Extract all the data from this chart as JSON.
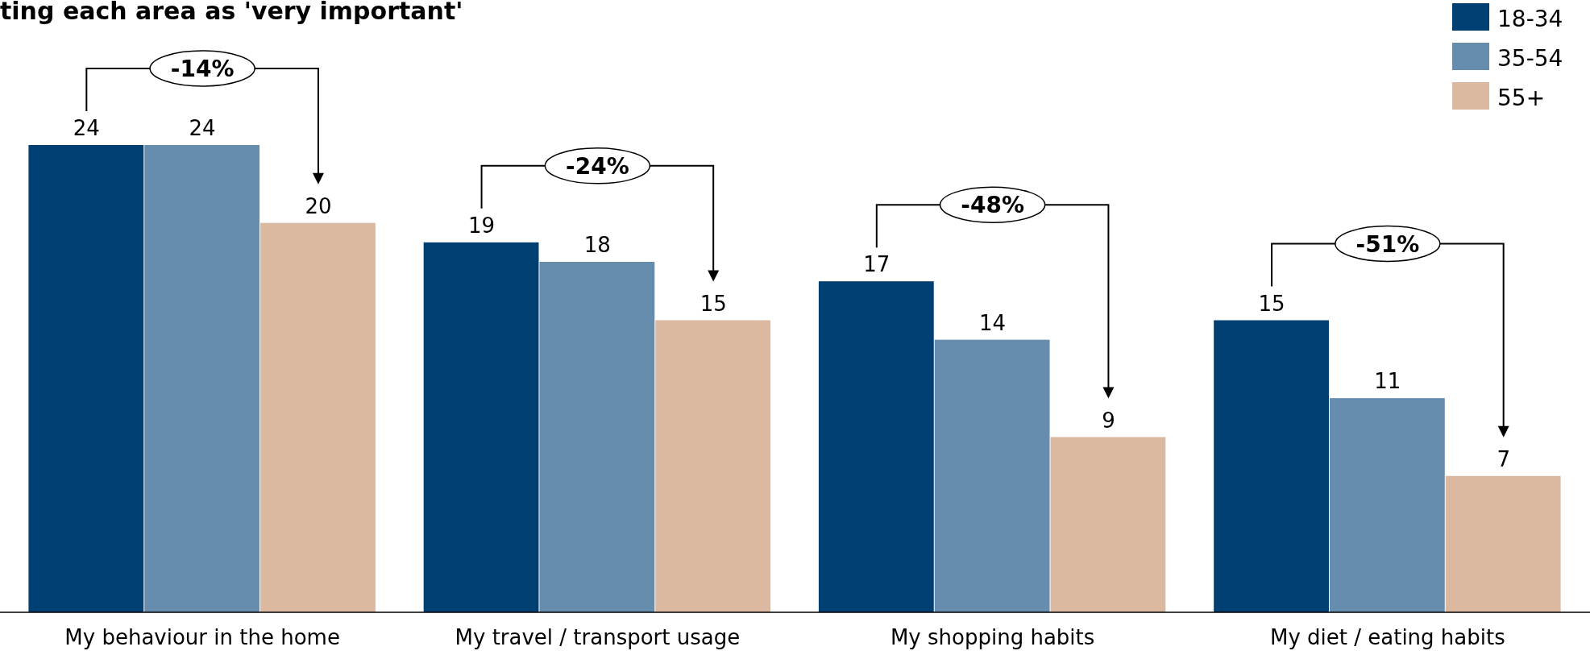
{
  "chart_data": {
    "type": "bar",
    "title": "ting each area as 'very important'",
    "categories": [
      "My behaviour in the home",
      "My travel / transport usage",
      "My shopping habits",
      "My diet / eating habits"
    ],
    "series": [
      {
        "name": "18-34",
        "color": "#003f72",
        "values": [
          24,
          19,
          17,
          15
        ]
      },
      {
        "name": "35-54",
        "color": "#678dae",
        "values": [
          24,
          18,
          14,
          11
        ]
      },
      {
        "name": "55+",
        "color": "#dbb8a0",
        "values": [
          20,
          15,
          9,
          7
        ]
      }
    ],
    "data_labels": true,
    "legend": "top right",
    "annotations": [
      "-14%",
      "-24%",
      "-48%",
      "-51%"
    ]
  }
}
